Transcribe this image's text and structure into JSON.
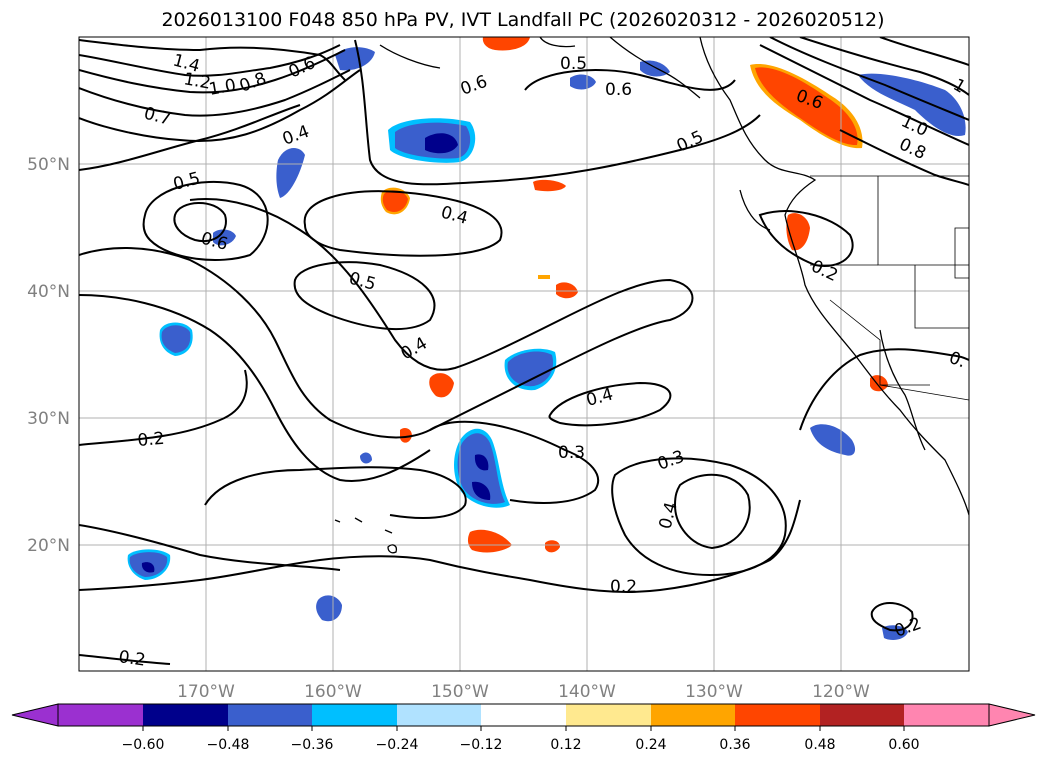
{
  "title": "2026013100 F048 850 hPa PV, IVT Landfall PC (2026020312 - 2026020512)",
  "lon_ticks": [
    "170°W",
    "160°W",
    "150°W",
    "140°W",
    "130°W",
    "120°W"
  ],
  "lat_ticks": [
    "50°N",
    "40°N",
    "30°N",
    "20°N"
  ],
  "colorbar": {
    "ticks": [
      "−0.60",
      "−0.48",
      "−0.36",
      "−0.24",
      "−0.12",
      "0.12",
      "0.24",
      "0.36",
      "0.48",
      "0.60"
    ],
    "colors": [
      "#9b30d0",
      "#00008b",
      "#3a5fcd",
      "#00bfff",
      "#b0e2ff",
      "#ffffff",
      "#ffe98f",
      "#ffa500",
      "#ff4500",
      "#b22222",
      "#ff85b0"
    ]
  },
  "contour_labels": [
    {
      "text": "1.4"
    },
    {
      "text": "1.2"
    },
    {
      "text": "1.0"
    },
    {
      "text": "0.8"
    },
    {
      "text": "0.6"
    },
    {
      "text": "0.7"
    },
    {
      "text": "0.4"
    },
    {
      "text": "0.6"
    },
    {
      "text": "0.5"
    },
    {
      "text": "0.6"
    },
    {
      "text": "0.5"
    },
    {
      "text": "0.6"
    },
    {
      "text": "1"
    },
    {
      "text": "1.0"
    },
    {
      "text": "0.8"
    },
    {
      "text": "0.5"
    },
    {
      "text": "0.6"
    },
    {
      "text": "0.4"
    },
    {
      "text": "0.5"
    },
    {
      "text": "0.2"
    },
    {
      "text": "0.4"
    },
    {
      "text": "0.4"
    },
    {
      "text": "0.2"
    },
    {
      "text": "0.3"
    },
    {
      "text": "0.3"
    },
    {
      "text": "0.4"
    },
    {
      "text": "0.2"
    },
    {
      "text": "0.2"
    },
    {
      "text": "0.2"
    },
    {
      "text": "0."
    }
  ],
  "chart_data": {
    "type": "map",
    "projection": "plate carree",
    "lon_range": [
      "180°W",
      "110°W"
    ],
    "lat_range": [
      "10°N",
      "60°N"
    ],
    "grid": true,
    "fields": [
      "850 hPa PV (black contours)",
      "IVT Landfall PC (shaded)"
    ],
    "contour_levels_labeled": [
      0.2,
      0.3,
      0.4,
      0.5,
      0.6,
      0.7,
      0.8,
      1.0,
      1.2,
      1.4
    ],
    "shading_bounds": [
      -0.6,
      -0.48,
      -0.36,
      -0.24,
      -0.12,
      0.12,
      0.24,
      0.36,
      0.48,
      0.6
    ],
    "colorbar_extend": "both"
  }
}
